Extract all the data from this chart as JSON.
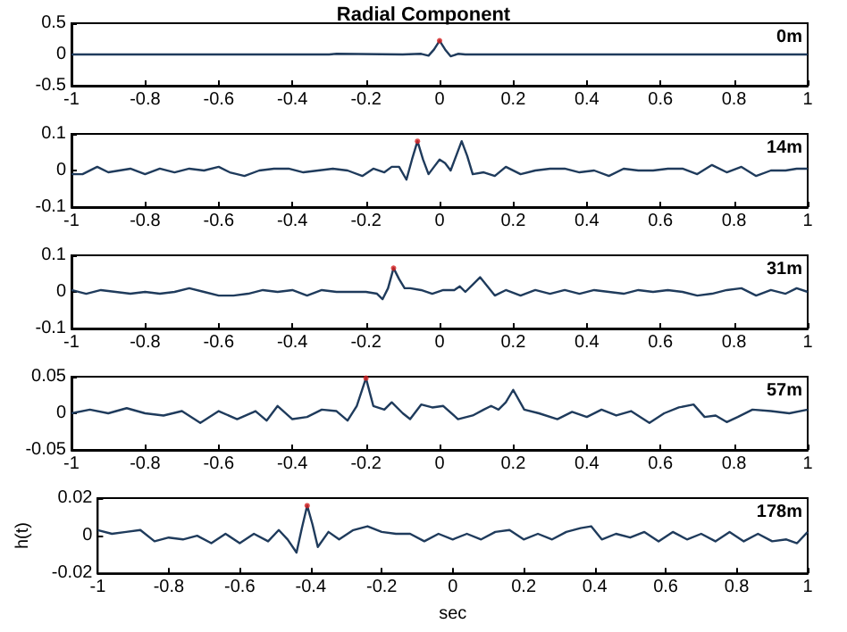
{
  "chart_data": [
    {
      "type": "line",
      "title": "Radial Component",
      "annotations": [
        "0m"
      ],
      "xlim": [
        -1,
        1
      ],
      "ylim": [
        -0.5,
        0.5
      ],
      "xticks": [
        -1,
        -0.8,
        -0.6,
        -0.4,
        -0.2,
        0,
        0.2,
        0.4,
        0.6,
        0.8,
        1
      ],
      "yticks": [
        -0.5,
        0,
        0.5
      ],
      "grid": false,
      "marker": "none",
      "series": [
        {
          "color": "#1f3b5c",
          "x": [
            -1,
            -0.5,
            -0.3,
            -0.28,
            -0.1,
            -0.05,
            -0.03,
            -0.015,
            0,
            0.015,
            0.03,
            0.05,
            0.07,
            0.1,
            0.3,
            0.6,
            1
          ],
          "values": [
            0,
            0,
            0,
            0.01,
            0,
            0.01,
            -0.02,
            0.08,
            0.22,
            0.08,
            -0.03,
            0.01,
            0,
            0,
            0,
            0,
            0
          ]
        },
        {
          "type": "scatter",
          "marker": "circle",
          "color": "#d62020",
          "x": [
            0
          ],
          "values": [
            0.22
          ]
        }
      ]
    },
    {
      "type": "line",
      "annotations": [
        "14m"
      ],
      "xlim": [
        -1,
        1
      ],
      "ylim": [
        -0.1,
        0.1
      ],
      "xticks": [
        -1,
        -0.8,
        -0.6,
        -0.4,
        -0.2,
        0,
        0.2,
        0.4,
        0.6,
        0.8,
        1
      ],
      "yticks": [
        -0.1,
        0,
        0.1
      ],
      "grid": false,
      "marker": "none",
      "series": [
        {
          "color": "#1f3b5c",
          "x": [
            -1,
            -0.97,
            -0.93,
            -0.9,
            -0.87,
            -0.84,
            -0.8,
            -0.76,
            -0.72,
            -0.68,
            -0.64,
            -0.6,
            -0.57,
            -0.53,
            -0.49,
            -0.45,
            -0.41,
            -0.37,
            -0.33,
            -0.29,
            -0.25,
            -0.21,
            -0.18,
            -0.15,
            -0.13,
            -0.11,
            -0.09,
            -0.075,
            -0.06,
            -0.045,
            -0.03,
            -0.015,
            0,
            0.015,
            0.03,
            0.045,
            0.06,
            0.075,
            0.09,
            0.12,
            0.15,
            0.18,
            0.22,
            0.26,
            0.3,
            0.34,
            0.38,
            0.42,
            0.46,
            0.5,
            0.54,
            0.58,
            0.62,
            0.66,
            0.7,
            0.74,
            0.78,
            0.82,
            0.86,
            0.9,
            0.94,
            0.97,
            1
          ],
          "values": [
            -0.01,
            -0.01,
            0.01,
            -0.005,
            0,
            0.005,
            -0.01,
            0.005,
            -0.005,
            0.005,
            0,
            0.01,
            -0.005,
            -0.015,
            0,
            0.005,
            0.005,
            -0.005,
            0,
            0.005,
            0,
            -0.015,
            0.005,
            -0.005,
            0.01,
            0.01,
            -0.025,
            0.03,
            0.08,
            0.03,
            -0.01,
            0.01,
            0.03,
            0.02,
            0,
            0.04,
            0.08,
            0.04,
            -0.01,
            -0.005,
            -0.015,
            0.01,
            -0.01,
            0,
            0.005,
            0.005,
            -0.005,
            0,
            -0.015,
            0.005,
            0,
            0,
            0.005,
            0.005,
            -0.01,
            0.015,
            -0.005,
            0.01,
            -0.015,
            0,
            0,
            0.005,
            0.005
          ]
        },
        {
          "type": "scatter",
          "marker": "circle",
          "color": "#d62020",
          "x": [
            -0.06
          ],
          "values": [
            0.08
          ]
        }
      ]
    },
    {
      "type": "line",
      "annotations": [
        "31m"
      ],
      "xlim": [
        -1,
        1
      ],
      "ylim": [
        -0.1,
        0.1
      ],
      "xticks": [
        -1,
        -0.8,
        -0.6,
        -0.4,
        -0.2,
        0,
        0.2,
        0.4,
        0.6,
        0.8,
        1
      ],
      "yticks": [
        -0.1,
        0,
        0.1
      ],
      "grid": false,
      "marker": "none",
      "series": [
        {
          "color": "#1f3b5c",
          "x": [
            -1,
            -0.96,
            -0.92,
            -0.88,
            -0.84,
            -0.8,
            -0.76,
            -0.72,
            -0.68,
            -0.64,
            -0.6,
            -0.56,
            -0.52,
            -0.48,
            -0.44,
            -0.4,
            -0.36,
            -0.32,
            -0.28,
            -0.24,
            -0.2,
            -0.17,
            -0.155,
            -0.14,
            -0.125,
            -0.11,
            -0.095,
            -0.08,
            -0.05,
            -0.02,
            0.01,
            0.04,
            0.055,
            0.07,
            0.09,
            0.11,
            0.13,
            0.15,
            0.18,
            0.22,
            0.26,
            0.3,
            0.34,
            0.38,
            0.42,
            0.46,
            0.5,
            0.54,
            0.58,
            0.62,
            0.66,
            0.7,
            0.74,
            0.78,
            0.82,
            0.86,
            0.9,
            0.94,
            0.97,
            1
          ],
          "values": [
            0.005,
            -0.005,
            0.005,
            0,
            -0.005,
            0,
            -0.005,
            0,
            0.01,
            0,
            -0.01,
            -0.01,
            -0.005,
            0.005,
            0,
            0.005,
            -0.01,
            0.005,
            0,
            0,
            0,
            -0.005,
            -0.02,
            0.01,
            0.065,
            0.035,
            0.01,
            0.01,
            0.005,
            -0.005,
            0.005,
            0.005,
            0.015,
            0,
            0.02,
            0.04,
            0.015,
            -0.01,
            0.005,
            -0.01,
            0.005,
            -0.005,
            0.005,
            -0.005,
            0.005,
            0,
            -0.005,
            0.005,
            0,
            0.005,
            0,
            -0.01,
            -0.005,
            0.005,
            0.01,
            -0.01,
            0.005,
            -0.005,
            0.01,
            0
          ]
        },
        {
          "type": "scatter",
          "marker": "circle",
          "color": "#d62020",
          "x": [
            -0.125
          ],
          "values": [
            0.065
          ]
        }
      ]
    },
    {
      "type": "line",
      "annotations": [
        "57m"
      ],
      "xlim": [
        -1,
        1
      ],
      "ylim": [
        -0.05,
        0.05
      ],
      "xticks": [
        -1,
        -0.8,
        -0.6,
        -0.4,
        -0.2,
        0,
        0.2,
        0.4,
        0.6,
        0.8,
        1
      ],
      "yticks": [
        -0.05,
        0,
        0.05
      ],
      "grid": false,
      "marker": "none",
      "series": [
        {
          "color": "#1f3b5c",
          "x": [
            -1,
            -0.95,
            -0.9,
            -0.85,
            -0.8,
            -0.75,
            -0.7,
            -0.65,
            -0.6,
            -0.55,
            -0.5,
            -0.47,
            -0.44,
            -0.4,
            -0.36,
            -0.32,
            -0.28,
            -0.25,
            -0.225,
            -0.2,
            -0.18,
            -0.15,
            -0.13,
            -0.1,
            -0.08,
            -0.05,
            -0.02,
            0.01,
            0.05,
            0.09,
            0.12,
            0.14,
            0.16,
            0.18,
            0.2,
            0.23,
            0.27,
            0.32,
            0.36,
            0.4,
            0.44,
            0.48,
            0.52,
            0.57,
            0.61,
            0.65,
            0.69,
            0.72,
            0.75,
            0.78,
            0.81,
            0.85,
            0.9,
            0.95,
            1
          ],
          "values": [
            0,
            0.005,
            0,
            0.007,
            0,
            -0.003,
            0.003,
            -0.013,
            0.003,
            -0.008,
            0.003,
            -0.01,
            0.01,
            -0.008,
            -0.005,
            0.005,
            0.003,
            -0.01,
            0.01,
            0.048,
            0.01,
            0.005,
            0.015,
            0,
            -0.008,
            0.012,
            0.008,
            0.01,
            -0.008,
            -0.003,
            0.005,
            0.01,
            0.005,
            0.015,
            0.032,
            0.005,
            0,
            -0.008,
            0.002,
            -0.005,
            0.005,
            -0.003,
            0.003,
            -0.013,
            0,
            0.008,
            0.012,
            -0.005,
            -0.003,
            -0.012,
            -0.005,
            0.005,
            0.003,
            0,
            0.005
          ]
        },
        {
          "type": "scatter",
          "marker": "circle",
          "color": "#d62020",
          "x": [
            -0.2
          ],
          "values": [
            0.048
          ]
        }
      ]
    },
    {
      "type": "line",
      "annotations": [
        "178m"
      ],
      "xlabel": "sec",
      "ylabel": "h(t)",
      "xlim": [
        -1,
        1
      ],
      "ylim": [
        -0.02,
        0.02
      ],
      "xticks": [
        -1,
        -0.8,
        -0.6,
        -0.4,
        -0.2,
        0,
        0.2,
        0.4,
        0.6,
        0.8,
        1
      ],
      "yticks": [
        -0.02,
        0,
        0.02
      ],
      "grid": false,
      "marker": "none",
      "series": [
        {
          "color": "#1f3b5c",
          "x": [
            -1,
            -0.96,
            -0.92,
            -0.88,
            -0.84,
            -0.8,
            -0.76,
            -0.72,
            -0.68,
            -0.64,
            -0.6,
            -0.56,
            -0.52,
            -0.49,
            -0.465,
            -0.44,
            -0.425,
            -0.41,
            -0.395,
            -0.38,
            -0.35,
            -0.32,
            -0.28,
            -0.24,
            -0.2,
            -0.16,
            -0.12,
            -0.08,
            -0.04,
            0,
            0.04,
            0.08,
            0.12,
            0.16,
            0.2,
            0.24,
            0.28,
            0.32,
            0.36,
            0.39,
            0.42,
            0.46,
            0.5,
            0.54,
            0.58,
            0.62,
            0.66,
            0.7,
            0.74,
            0.78,
            0.82,
            0.86,
            0.9,
            0.94,
            0.97,
            1
          ],
          "values": [
            0.003,
            0.001,
            0.002,
            0.003,
            -0.003,
            -0.001,
            -0.002,
            0,
            -0.004,
            0.001,
            -0.004,
            0.001,
            -0.003,
            0.003,
            -0.002,
            -0.009,
            0.004,
            0.016,
            0.006,
            -0.006,
            0.002,
            -0.002,
            0.003,
            0.005,
            0.002,
            0.001,
            0.001,
            -0.003,
            0.001,
            -0.002,
            0.001,
            -0.002,
            0.002,
            0.003,
            -0.002,
            0.001,
            -0.002,
            0.002,
            0.004,
            0.005,
            -0.002,
            0.001,
            -0.001,
            0.002,
            -0.003,
            0.002,
            -0.002,
            0.001,
            -0.003,
            0.002,
            -0.003,
            0.001,
            -0.003,
            -0.002,
            -0.004,
            0.002
          ]
        },
        {
          "type": "scatter",
          "marker": "circle",
          "color": "#d62020",
          "x": [
            -0.41
          ],
          "values": [
            0.016
          ]
        }
      ]
    }
  ]
}
